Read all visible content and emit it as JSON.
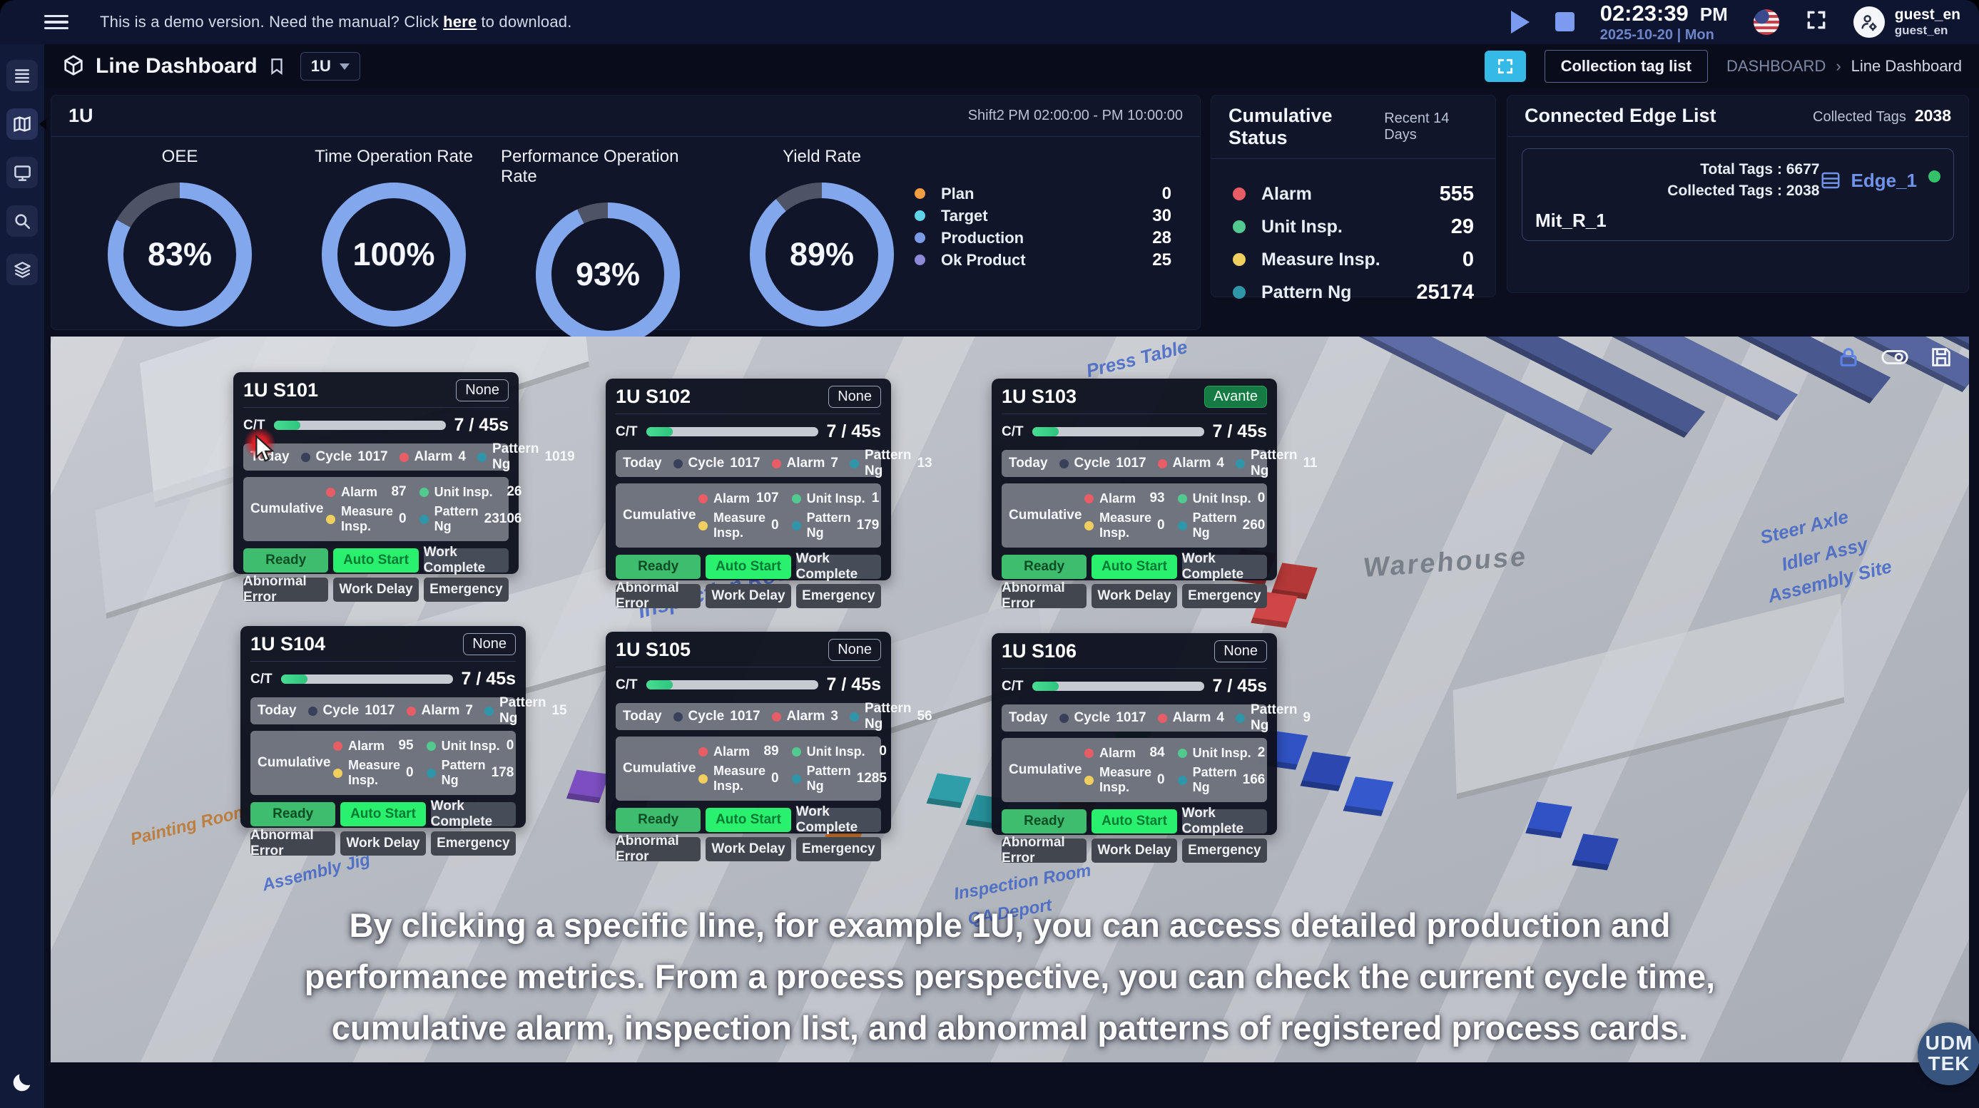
{
  "colors": {
    "gauge_fill": "#82a7ec",
    "gauge_rest": "#4e5466",
    "plan": "#f59e42",
    "target": "#5fd4e8",
    "production": "#7d9ce8",
    "ok_product": "#8f87d8",
    "alarm": "#e85d66",
    "unit_insp": "#52c98f",
    "measure_insp": "#f0cf5e",
    "pattern_ng": "#2e96a8",
    "cycle": "#39405a",
    "online": "#35c06a",
    "accent_cyan": "#35b9e6"
  },
  "topbar": {
    "demo_prefix": "This is a demo version. Need the manual? Click",
    "demo_link": "here",
    "demo_suffix": "to download.",
    "time": "02:23:39",
    "meridiem": "PM",
    "date": "2025-10-20 | Mon",
    "username": "guest_en",
    "username_sub": "guest_en"
  },
  "titlebar": {
    "title": "Line Dashboard",
    "line_selector": "1U",
    "collection_button": "Collection tag list",
    "breadcrumb_root": "DASHBOARD",
    "breadcrumb_sep": "›",
    "breadcrumb_current": "Line Dashboard"
  },
  "line_panel": {
    "title": "1U",
    "shift": "Shift2  PM 02:00:00 - PM 10:00:00",
    "gauges": [
      {
        "label": "OEE",
        "value": 83,
        "text": "83%"
      },
      {
        "label": "Time Operation Rate",
        "value": 100,
        "text": "100%"
      },
      {
        "label": "Performance Operation Rate",
        "value": 93,
        "text": "93%"
      },
      {
        "label": "Yield Rate",
        "value": 89,
        "text": "89%"
      }
    ],
    "legend": [
      {
        "label": "Plan",
        "value": "0"
      },
      {
        "label": "Target",
        "value": "30"
      },
      {
        "label": "Production",
        "value": "28"
      },
      {
        "label": "Ok Product",
        "value": "25"
      }
    ]
  },
  "cumulative_panel": {
    "title": "Cumulative Status",
    "range": "Recent 14 Days",
    "items": [
      {
        "label": "Alarm",
        "value": "555"
      },
      {
        "label": "Unit Insp.",
        "value": "29"
      },
      {
        "label": "Measure Insp.",
        "value": "0"
      },
      {
        "label": "Pattern Ng",
        "value": "25174"
      }
    ]
  },
  "edge_panel": {
    "title": "Connected Edge List",
    "collected_label": "Collected Tags",
    "collected_value": "2038",
    "edge_name": "Edge_1",
    "edge_device": "Mit_R_1",
    "total_tags": "Total Tags : 6677",
    "collected_tags": "Collected Tags : 2038"
  },
  "card_labels": {
    "ct": "C/T",
    "today": "Today",
    "cycle": "Cycle",
    "alarm": "Alarm",
    "pattern_ng": "Pattern Ng",
    "cumulative": "Cumulative",
    "unit_insp": "Unit Insp.",
    "measure_insp": "Measure Insp.",
    "buttons": [
      "Ready",
      "Auto Start",
      "Work Complete",
      "Abnormal Error",
      "Work Delay",
      "Emergency"
    ]
  },
  "cards": [
    {
      "name": "1U S101",
      "badge": "None",
      "ct_text": "7 / 45s",
      "ct_pct": 15.5,
      "today_cycle": "1017",
      "today_alarm": "4",
      "today_pattern": "1019",
      "cum_alarm": "87",
      "cum_unit": "26",
      "cum_measure": "0",
      "cum_pattern": "23106"
    },
    {
      "name": "1U S102",
      "badge": "None",
      "ct_text": "7 / 45s",
      "ct_pct": 15.5,
      "today_cycle": "1017",
      "today_alarm": "7",
      "today_pattern": "13",
      "cum_alarm": "107",
      "cum_unit": "1",
      "cum_measure": "0",
      "cum_pattern": "179"
    },
    {
      "name": "1U S103",
      "badge": "Avante",
      "ct_text": "7 / 45s",
      "ct_pct": 15.5,
      "today_cycle": "1017",
      "today_alarm": "4",
      "today_pattern": "11",
      "cum_alarm": "93",
      "cum_unit": "0",
      "cum_measure": "0",
      "cum_pattern": "260"
    },
    {
      "name": "1U S104",
      "badge": "None",
      "ct_text": "7 / 45s",
      "ct_pct": 15.5,
      "today_cycle": "1017",
      "today_alarm": "7",
      "today_pattern": "15",
      "cum_alarm": "95",
      "cum_unit": "0",
      "cum_measure": "0",
      "cum_pattern": "178"
    },
    {
      "name": "1U S105",
      "badge": "None",
      "ct_text": "7 / 45s",
      "ct_pct": 15.5,
      "today_cycle": "1017",
      "today_alarm": "3",
      "today_pattern": "56",
      "cum_alarm": "89",
      "cum_unit": "0",
      "cum_measure": "0",
      "cum_pattern": "1285"
    },
    {
      "name": "1U S106",
      "badge": "None",
      "ct_text": "7 / 45s",
      "ct_pct": 15.5,
      "today_cycle": "1017",
      "today_alarm": "4",
      "today_pattern": "9",
      "cum_alarm": "84",
      "cum_unit": "2",
      "cum_measure": "0",
      "cum_pattern": "166"
    }
  ],
  "scene": {
    "labels": [
      "Press Table",
      "Warehouse",
      "Inspection Room",
      "Steer Axle",
      "Idler Assy",
      "Assembly Site",
      "Painting Room",
      "Assembly Jig",
      "Inspection Room",
      "QA Deport"
    ]
  },
  "caption": {
    "line1": "By clicking a specific line, for example 1U, you can access detailed production and",
    "line2": "performance metrics. From a process perspective, you can check the current cycle time,",
    "line3": "cumulative alarm, inspection list, and abnormal patterns of registered process cards."
  },
  "logo": {
    "top": "UDM",
    "bottom": "TEK"
  }
}
